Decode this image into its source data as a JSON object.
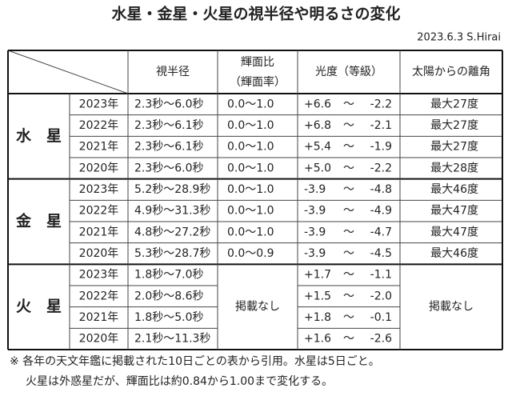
{
  "title": "水星・金星・火星の視半径や明るさの変化",
  "author": "2023.6.3 S.Hirai",
  "table": {
    "header": [
      "視半径",
      [
        "輝面比",
        "（輝面率）"
      ],
      "光度（等級）",
      "太陽からの離角"
    ],
    "separator": "〜",
    "groups": [
      {
        "planet": "水　星",
        "rows": [
          {
            "year": "2023年",
            "diameter": "2.3秒〜6.0秒",
            "phase": "0.0〜1.0",
            "mag_from": "+6.6",
            "mag_to": "-2.2",
            "elongation": "最大27度"
          },
          {
            "year": "2022年",
            "diameter": "2.3秒〜6.1秒",
            "phase": "0.0〜1.0",
            "mag_from": "+6.8",
            "mag_to": "-2.1",
            "elongation": "最大27度"
          },
          {
            "year": "2021年",
            "diameter": "2.3秒〜6.1秒",
            "phase": "0.0〜1.0",
            "mag_from": "+5.4",
            "mag_to": "-1.9",
            "elongation": "最大27度"
          },
          {
            "year": "2020年",
            "diameter": "2.3秒〜6.0秒",
            "phase": "0.0〜1.0",
            "mag_from": "+5.0",
            "mag_to": "-2.2",
            "elongation": "最大28度"
          }
        ]
      },
      {
        "planet": "金　星",
        "rows": [
          {
            "year": "2023年",
            "diameter": "5.2秒〜28.9秒",
            "phase": "0.0〜1.0",
            "mag_from": "-3.9",
            "mag_to": "-4.8",
            "elongation": "最大46度"
          },
          {
            "year": "2022年",
            "diameter": "4.9秒〜31.3秒",
            "phase": "0.0〜1.0",
            "mag_from": "-3.9",
            "mag_to": "-4.9",
            "elongation": "最大47度"
          },
          {
            "year": "2021年",
            "diameter": "4.8秒〜27.2秒",
            "phase": "0.0〜1.0",
            "mag_from": "-3.9",
            "mag_to": "-4.7",
            "elongation": "最大47度"
          },
          {
            "year": "2020年",
            "diameter": "5.3秒〜28.7秒",
            "phase": "0.0〜0.9",
            "mag_from": "-3.9",
            "mag_to": "-4.5",
            "elongation": "最大46度"
          }
        ]
      },
      {
        "planet": "火　星",
        "phase": "掲載なし",
        "elongation": "掲載なし",
        "rows": [
          {
            "year": "2023年",
            "diameter": "1.8秒〜7.0秒",
            "mag_from": "+1.7",
            "mag_to": "-1.1"
          },
          {
            "year": "2022年",
            "diameter": "2.0秒〜8.6秒",
            "mag_from": "+1.5",
            "mag_to": "-2.0"
          },
          {
            "year": "2021年",
            "diameter": "1.8秒〜5.0秒",
            "mag_from": "+1.8",
            "mag_to": "-0.1"
          },
          {
            "year": "2020年",
            "diameter": "2.1秒〜11.3秒",
            "mag_from": "+1.6",
            "mag_to": "-2.6"
          }
        ]
      }
    ]
  },
  "notes": [
    "※ 各年の天文年鑑に掲載された10日ごとの表から引用。水星は5日ごと。",
    "火星は外惑星だが、輝面比は約0.84から1.00まで変化する。"
  ]
}
